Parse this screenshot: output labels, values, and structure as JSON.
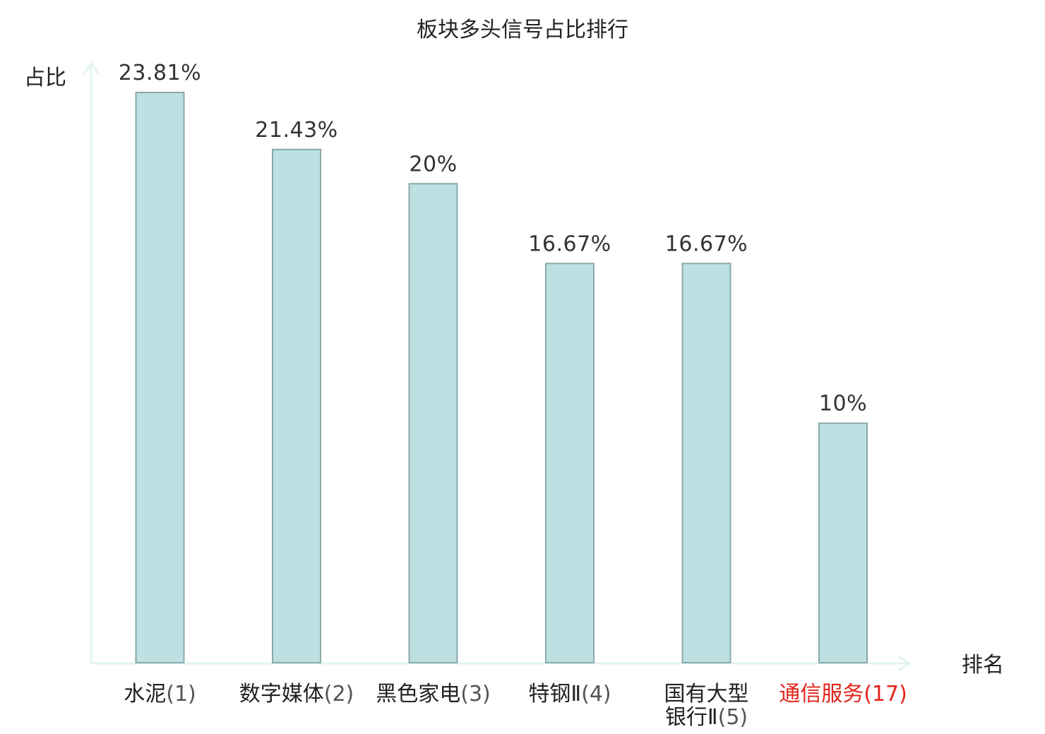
{
  "chart_data": {
    "type": "bar",
    "title": "板块多头信号占比排行",
    "ylabel": "占比",
    "xlabel": "排名",
    "ylim": [
      0,
      25
    ],
    "grid": false,
    "categories": [
      {
        "lines": [
          "水泥"
        ],
        "rank": "(1)",
        "highlight": false
      },
      {
        "lines": [
          "数字媒体"
        ],
        "rank": "(2)",
        "highlight": false
      },
      {
        "lines": [
          "黑色家电"
        ],
        "rank": "(3)",
        "highlight": false
      },
      {
        "lines": [
          "特钢Ⅱ"
        ],
        "rank": "(4)",
        "highlight": false
      },
      {
        "lines": [
          "国有大型",
          "银行Ⅱ"
        ],
        "rank": "(5)",
        "highlight": false
      },
      {
        "lines": [
          "通信服务"
        ],
        "rank": "(17)",
        "highlight": true
      }
    ],
    "values": [
      23.81,
      21.43,
      20,
      16.67,
      16.67,
      10
    ],
    "value_labels": [
      "23.81%",
      "21.43%",
      "20%",
      "16.67%",
      "16.67%",
      "10%"
    ]
  },
  "colors": {
    "bar_fill": "#bde0e3",
    "bar_stroke": "#8aa9ab",
    "axis": "#e2f4f1",
    "highlight": "#e0241b"
  }
}
